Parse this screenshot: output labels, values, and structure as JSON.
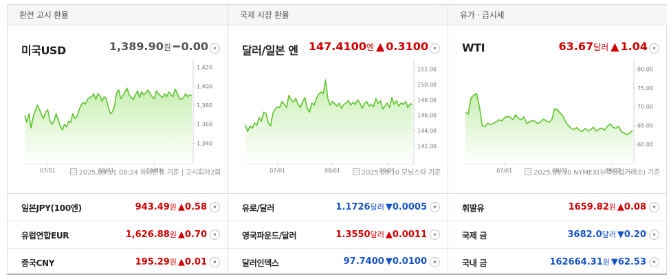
{
  "columns": [
    {
      "header": "환전 고시 환율",
      "title": "미국USD",
      "price": "1,389.90",
      "unit": "원",
      "change_sign": "━",
      "change": "0.00",
      "direction": "flat",
      "source": "2025.09.11 08:24 하나은행 기준 | 고시회차2회",
      "chart_data": {
        "type": "area",
        "x_ticks": [
          "07/01",
          "08/01",
          "09/01"
        ],
        "y_ticks": [
          1420,
          1400,
          1380,
          1360,
          1340
        ],
        "ylim": [
          1333,
          1422
        ],
        "values": [
          1369,
          1362,
          1371,
          1356,
          1367,
          1374,
          1380,
          1376,
          1370,
          1366,
          1373,
          1375,
          1364,
          1360,
          1363,
          1371,
          1365,
          1358,
          1354,
          1360,
          1357,
          1363,
          1362,
          1371,
          1366,
          1368,
          1375,
          1380,
          1383,
          1381,
          1386,
          1388,
          1389,
          1392,
          1386,
          1392,
          1390,
          1384,
          1389,
          1387,
          1378,
          1371,
          1373,
          1379,
          1393,
          1396,
          1387,
          1390,
          1394,
          1398,
          1391,
          1388,
          1386,
          1391,
          1395,
          1388,
          1394,
          1391,
          1393,
          1396,
          1392,
          1389,
          1387,
          1395,
          1392,
          1390,
          1388,
          1392,
          1389,
          1394,
          1391,
          1389,
          1397,
          1393,
          1387,
          1386,
          1388,
          1392,
          1389,
          1391,
          1390
        ],
        "x_tick_index": [
          11,
          39,
          62
        ]
      },
      "rows": [
        {
          "name": "일본JPY(100엔)",
          "price": "943.49",
          "unit": "원",
          "sign": "▲",
          "change": "0.58",
          "direction": "up"
        },
        {
          "name": "유럽연합EUR",
          "price": "1,626.88",
          "unit": "원",
          "sign": "▲",
          "change": "0.70",
          "direction": "up"
        },
        {
          "name": "중국CNY",
          "price": "195.29",
          "unit": "원",
          "sign": "▲",
          "change": "0.01",
          "direction": "up"
        }
      ]
    },
    {
      "header": "국제 시장 환율",
      "title": "달러/일본 엔",
      "price": "147.4100",
      "unit": "엔",
      "change_sign": "▲",
      "change": "0.3100",
      "direction": "up",
      "source": "2025.09.10 모닝스타 기준",
      "chart_data": {
        "type": "area",
        "x_ticks": [
          "07/01",
          "08/01",
          "09/01"
        ],
        "y_ticks": [
          152.0,
          150.0,
          148.0,
          146.0,
          144.0,
          142.0
        ],
        "ylim": [
          141.5,
          152.5
        ],
        "values": [
          144.7,
          143.9,
          144.6,
          144.3,
          145.0,
          144.7,
          145.7,
          145.2,
          146.4,
          146.2,
          145.0,
          144.6,
          146.2,
          146.8,
          147.1,
          147.0,
          147.8,
          147.4,
          147.0,
          148.6,
          148.0,
          147.7,
          148.2,
          147.4,
          147.0,
          147.8,
          148.3,
          146.9,
          146.4,
          147.6,
          147.3,
          148.2,
          148.7,
          149.0,
          148.8,
          150.6,
          148.2,
          147.3,
          147.8,
          147.5,
          147.2,
          147.6,
          146.9,
          147.4,
          147.6,
          147.9,
          147.3,
          147.7,
          147.4,
          148.0,
          147.6,
          146.9,
          147.5,
          147.8,
          147.2,
          147.4,
          147.1,
          148.2,
          147.5,
          147.9,
          146.8,
          147.2,
          147.6,
          147.0,
          148.3,
          147.4,
          147.9,
          147.2,
          147.6,
          147.4,
          147.8,
          147.0,
          147.5,
          147.4
        ],
        "x_tick_index": [
          14,
          38,
          62
        ]
      },
      "rows": [
        {
          "name": "유로/달러",
          "price": "1.1726",
          "unit": "달러",
          "sign": "▼",
          "change": "0.0005",
          "direction": "down"
        },
        {
          "name": "영국파운드/달러",
          "price": "1.3550",
          "unit": "달러",
          "sign": "▲",
          "change": "0.0011",
          "direction": "up"
        },
        {
          "name": "달러인덱스",
          "price": "97.7400",
          "unit": "",
          "sign": "▼",
          "change": "0.0100",
          "direction": "down"
        }
      ]
    },
    {
      "header": "유가 · 금시세",
      "title": "WTI",
      "price": "63.67",
      "unit": "달러",
      "change_sign": "▲",
      "change": "1.04",
      "direction": "up",
      "source": "2025.09.10 NYMEX(뉴욕상업거래소) 기준",
      "chart_data": {
        "type": "area",
        "x_ticks": [
          "07/01",
          "08/01",
          "09/02"
        ],
        "y_ticks": [
          80.0,
          75.0,
          70.0,
          65.0,
          60.0
        ],
        "ylim": [
          58.5,
          81.0
        ],
        "values": [
          68.5,
          68.0,
          72.3,
          73.0,
          73.5,
          70.0,
          65.0,
          64.7,
          65.6,
          65.2,
          65.5,
          65.9,
          66.5,
          66.2,
          67.0,
          67.4,
          67.2,
          66.5,
          67.8,
          66.9,
          66.5,
          67.3,
          65.5,
          65.9,
          66.3,
          66.1,
          65.5,
          65.9,
          66.7,
          66.2,
          65.8,
          66.5,
          69.4,
          69.2,
          68.3,
          67.5,
          65.9,
          64.9,
          64.2,
          63.9,
          64.4,
          63.6,
          63.4,
          64.2,
          63.5,
          63.9,
          64.5,
          63.5,
          64.0,
          64.3,
          63.7,
          64.8,
          65.4,
          64.5,
          64.2,
          64.8,
          63.3,
          63.0,
          62.5,
          62.9,
          63.7
        ],
        "x_tick_index": [
          14,
          34,
          53
        ]
      },
      "rows": [
        {
          "name": "휘발유",
          "price": "1659.82",
          "unit": "원",
          "sign": "▲",
          "change": "0.08",
          "direction": "up"
        },
        {
          "name": "국제 금",
          "price": "3682.0",
          "unit": "달러",
          "sign": "▼",
          "change": "0.20",
          "direction": "down"
        },
        {
          "name": "국내 금",
          "price": "162664.31",
          "unit": "원",
          "sign": "▼",
          "change": "62.53",
          "direction": "down"
        }
      ]
    }
  ],
  "icons": {
    "more": "chevron-down-icon",
    "source": "document-icon"
  },
  "colors": {
    "up": "#d20000",
    "down": "#1654c9",
    "line": "#5cc42b",
    "fill_top": "#c4eeae"
  }
}
